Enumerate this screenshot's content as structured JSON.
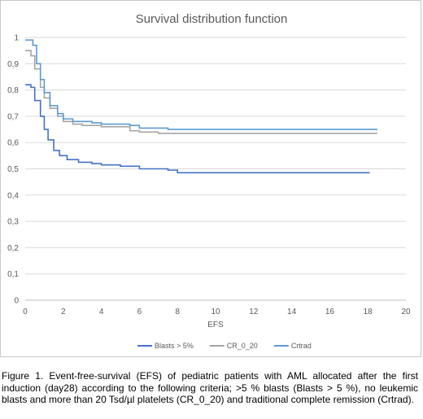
{
  "chart_data": {
    "type": "line",
    "title": "Survival distribution function",
    "xlabel": "EFS",
    "ylabel": "",
    "xlim": [
      0,
      20
    ],
    "ylim": [
      0,
      1
    ],
    "x_ticks": [
      "0",
      "2",
      "4",
      "6",
      "8",
      "10",
      "12",
      "14",
      "16",
      "18",
      "20"
    ],
    "y_ticks": [
      "0",
      "0,1",
      "0,2",
      "0,3",
      "0,4",
      "0,5",
      "0,6",
      "0,7",
      "0,8",
      "0,9",
      "1"
    ],
    "grid": true,
    "legend_position": "bottom",
    "step": true,
    "series": [
      {
        "name": "Blasts > 5%",
        "color": "#4472c4",
        "points": [
          [
            0,
            0.82
          ],
          [
            0.3,
            0.81
          ],
          [
            0.5,
            0.76
          ],
          [
            0.8,
            0.7
          ],
          [
            1.0,
            0.65
          ],
          [
            1.2,
            0.61
          ],
          [
            1.5,
            0.57
          ],
          [
            1.8,
            0.55
          ],
          [
            2.2,
            0.535
          ],
          [
            2.8,
            0.525
          ],
          [
            3.5,
            0.52
          ],
          [
            4.0,
            0.515
          ],
          [
            5.0,
            0.51
          ],
          [
            6.0,
            0.5
          ],
          [
            7.5,
            0.495
          ],
          [
            8.0,
            0.485
          ],
          [
            18.1,
            0.485
          ]
        ]
      },
      {
        "name": "CR_0_20",
        "color": "#a5a5a5",
        "points": [
          [
            0,
            0.95
          ],
          [
            0.3,
            0.93
          ],
          [
            0.5,
            0.88
          ],
          [
            0.8,
            0.81
          ],
          [
            1.0,
            0.77
          ],
          [
            1.3,
            0.73
          ],
          [
            1.7,
            0.7
          ],
          [
            2.0,
            0.68
          ],
          [
            2.5,
            0.67
          ],
          [
            3.0,
            0.665
          ],
          [
            4.0,
            0.66
          ],
          [
            5.5,
            0.645
          ],
          [
            6.0,
            0.64
          ],
          [
            7.0,
            0.635
          ],
          [
            18.5,
            0.635
          ]
        ]
      },
      {
        "name": "Crtrad",
        "color": "#5b9bd5",
        "points": [
          [
            0,
            0.99
          ],
          [
            0.2,
            0.99
          ],
          [
            0.4,
            0.97
          ],
          [
            0.6,
            0.9
          ],
          [
            0.8,
            0.84
          ],
          [
            1.0,
            0.79
          ],
          [
            1.3,
            0.74
          ],
          [
            1.7,
            0.71
          ],
          [
            2.0,
            0.69
          ],
          [
            2.5,
            0.68
          ],
          [
            3.5,
            0.675
          ],
          [
            4.0,
            0.67
          ],
          [
            5.5,
            0.665
          ],
          [
            6.0,
            0.655
          ],
          [
            7.5,
            0.65
          ],
          [
            18.5,
            0.65
          ]
        ]
      }
    ]
  },
  "caption": "Figure 1. Event-free-survival (EFS) of pediatric patients with AML allocated after the first induction (day28) according to the following criteria; >5 % blasts (Blasts > 5 %), no leukemic blasts and more than 20 Tsd/µl platelets (CR_0_20) and traditional complete remission (Crtrad)."
}
